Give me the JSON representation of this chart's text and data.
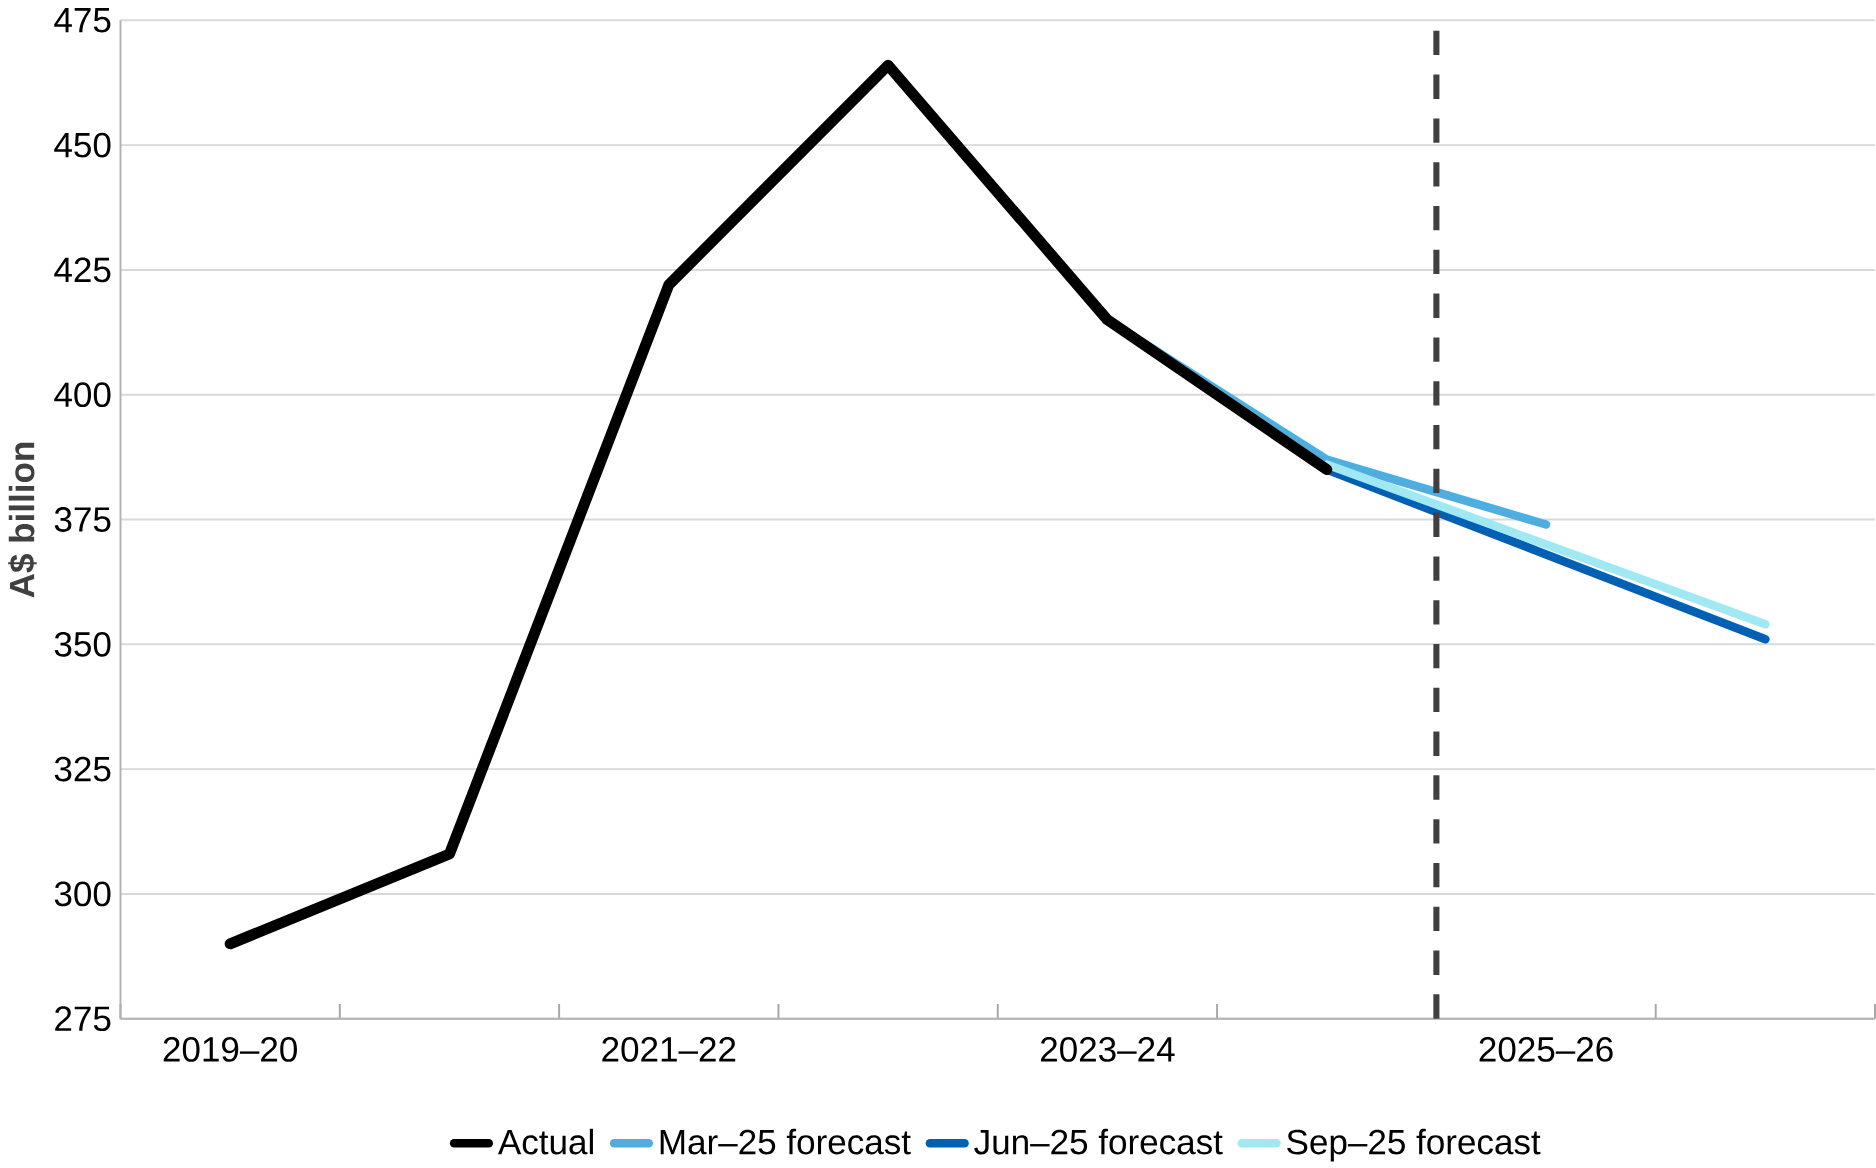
{
  "chart_data": {
    "type": "line",
    "ylabel": "A$ billion",
    "categories": [
      "2019–20",
      null,
      "2021–22",
      null,
      "2023–24",
      null,
      "2025–26",
      null
    ],
    "series": [
      {
        "name": "Actual",
        "color": "#000000",
        "values": [
          290,
          308,
          422,
          466,
          415,
          385,
          null,
          null
        ]
      },
      {
        "name": "Mar–25 forecast",
        "color": "#4eaee0",
        "values": [
          null,
          null,
          null,
          null,
          415,
          387,
          374,
          null
        ]
      },
      {
        "name": "Jun–25 forecast",
        "color": "#0060b4",
        "values": [
          null,
          null,
          null,
          null,
          415,
          385,
          368,
          351
        ]
      },
      {
        "name": "Sep–25 forecast",
        "color": "#a0e8f2",
        "values": [
          null,
          null,
          null,
          null,
          null,
          386,
          370,
          354
        ]
      }
    ],
    "ylim": [
      275,
      475
    ],
    "yticks": [
      275,
      300,
      325,
      350,
      375,
      400,
      425,
      450,
      475
    ],
    "grid": "y",
    "legend": "bottom",
    "marker": "none",
    "line_style": "solid"
  }
}
